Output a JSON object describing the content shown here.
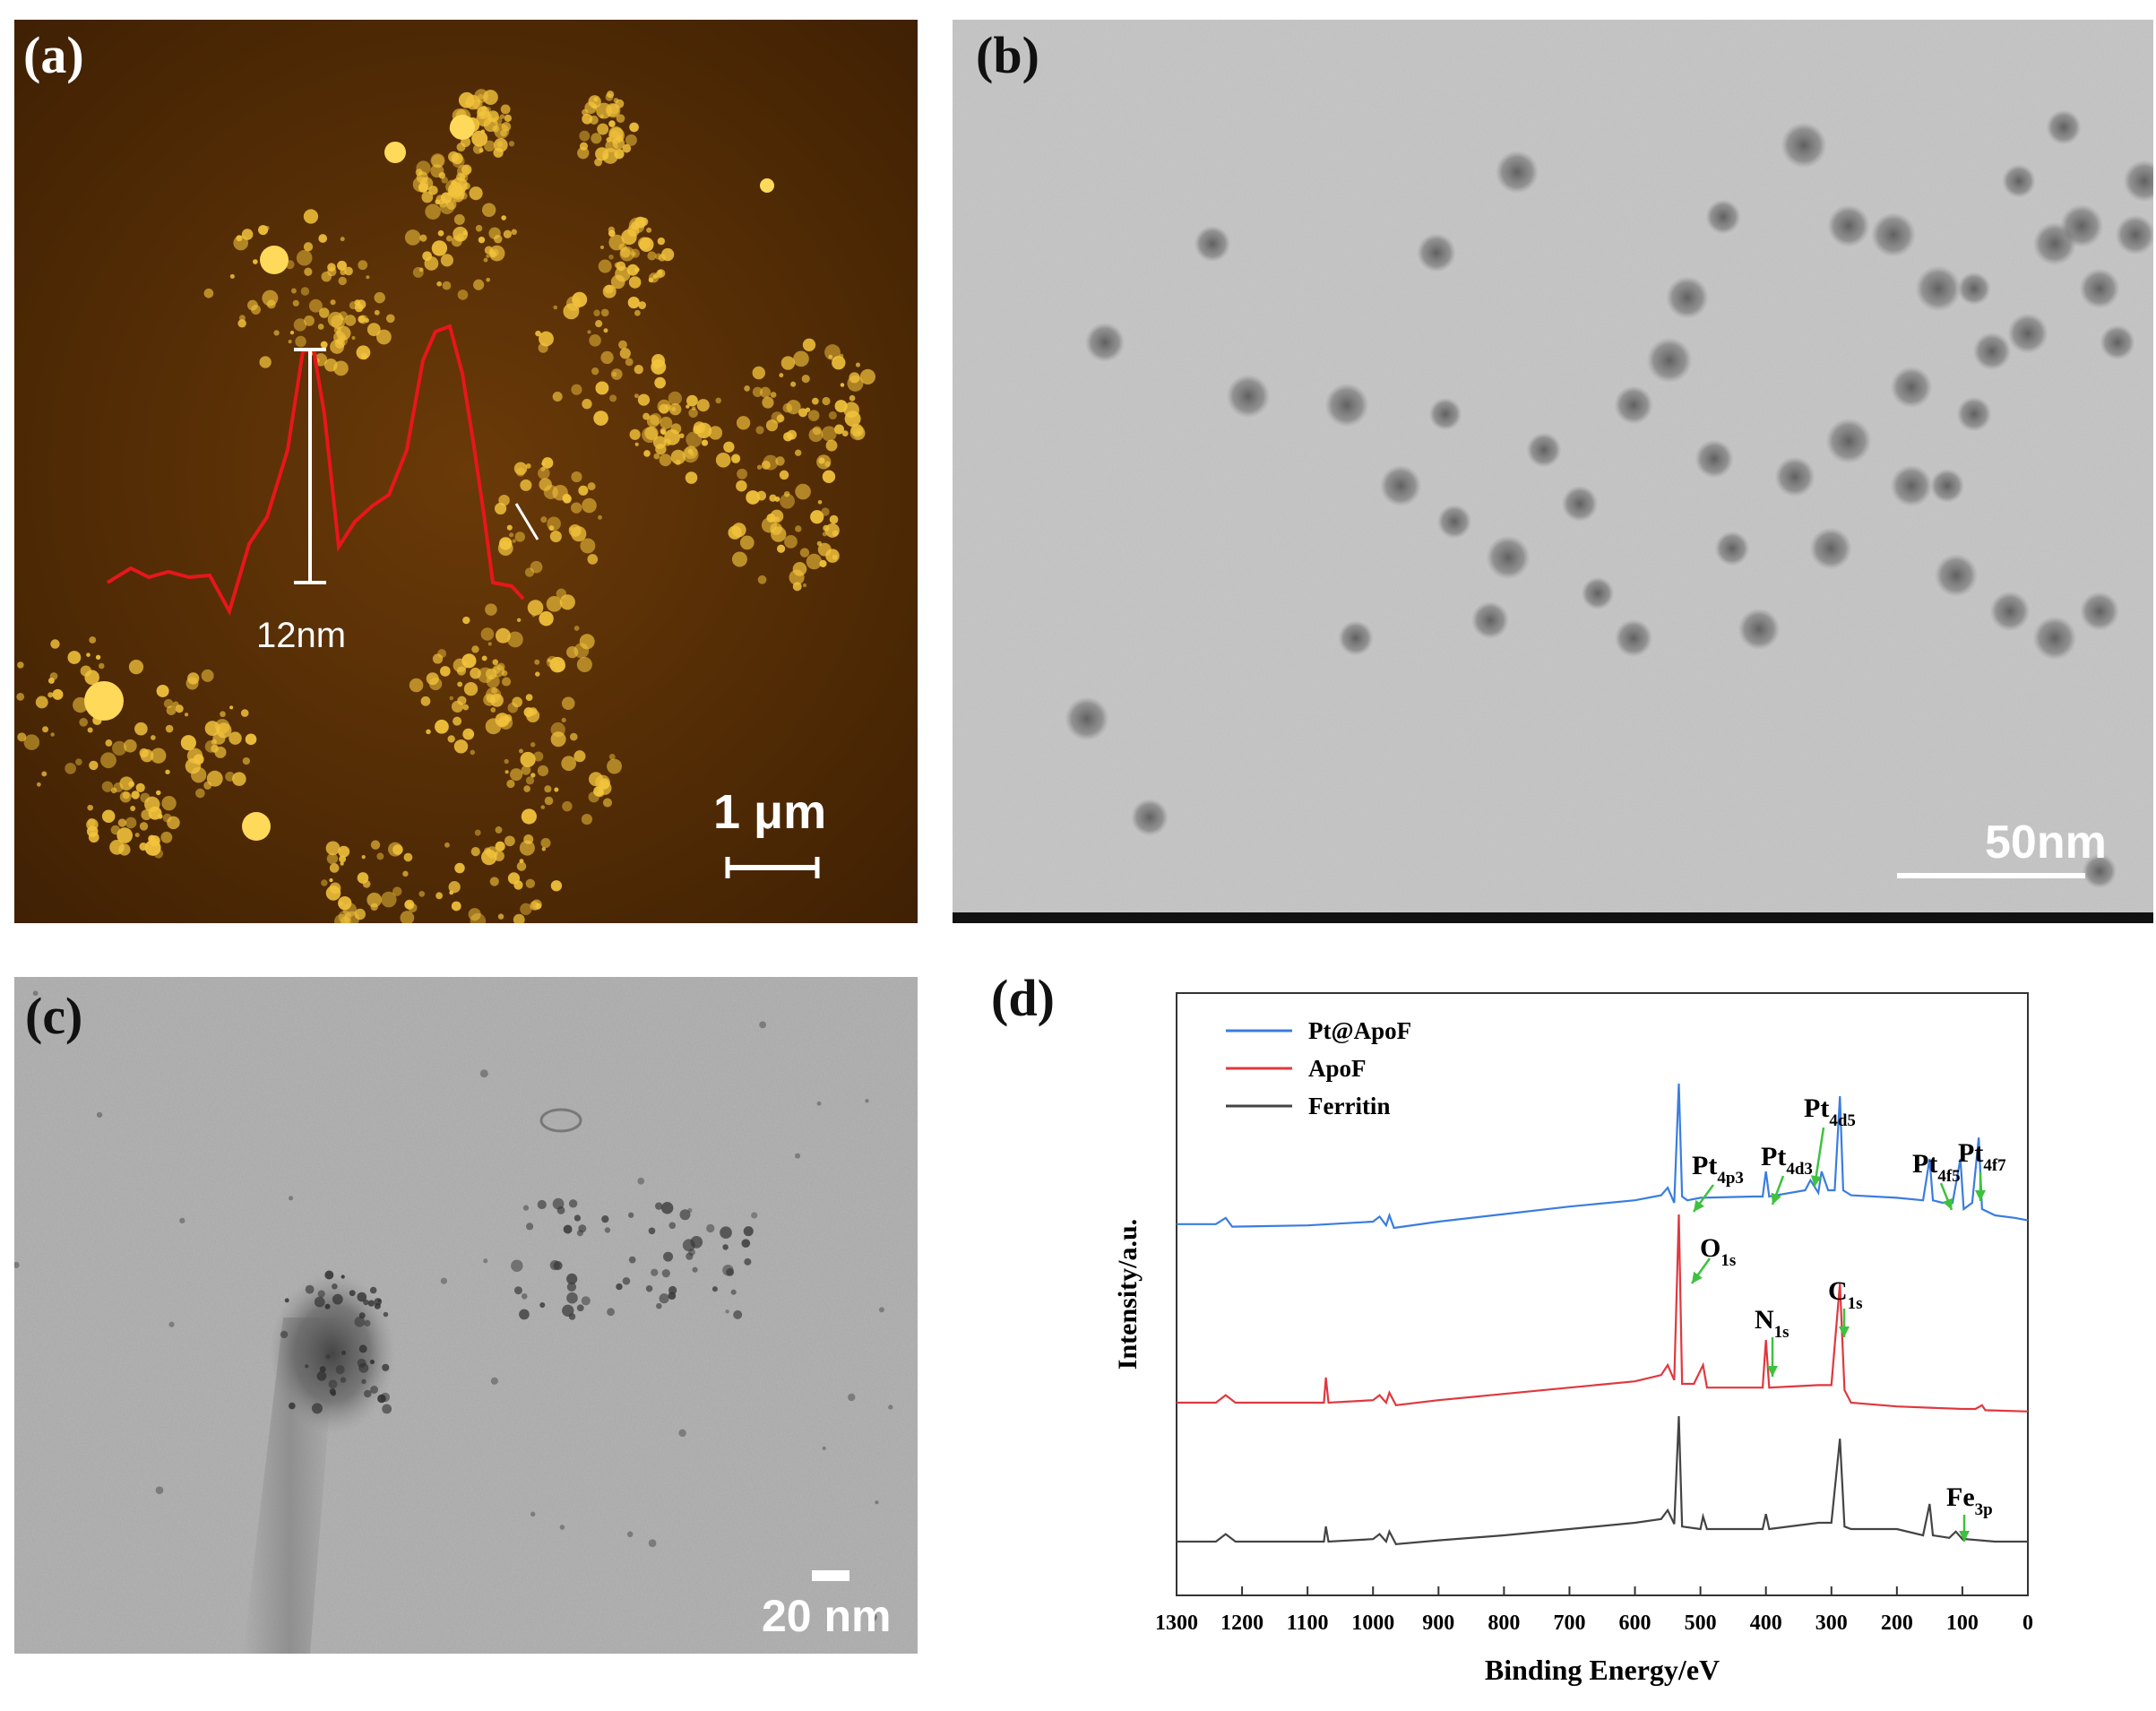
{
  "panel_a": {
    "label": "(a)",
    "height_label": "12nm",
    "scale_label": "1 μm",
    "colors": {
      "bg": "#5a2f06",
      "particle": "#f2c33c",
      "profile": "#e8161b"
    }
  },
  "panel_b": {
    "label": "(b)",
    "scale_label": "50nm",
    "colors": {
      "bg": "#c8c8c8",
      "particle": "#5e5e5e"
    }
  },
  "panel_c": {
    "label": "(c)",
    "scale_label": "20 nm",
    "colors": {
      "bg": "#a7a7a7",
      "particle": "#3a3a3a"
    }
  },
  "panel_d": {
    "label": "(d)",
    "chart_data": {
      "type": "line",
      "xlabel": "Binding Energy/eV",
      "ylabel": "Intensity/a.u.",
      "xlim": [
        1300,
        0
      ],
      "x_ticks": [
        1300,
        1200,
        1100,
        1000,
        900,
        800,
        700,
        600,
        500,
        400,
        300,
        200,
        100,
        0
      ],
      "legend_position": "top-left",
      "series": [
        {
          "name": "Pt@ApoF",
          "color": "#3a7de0",
          "offset": 2.0,
          "points": [
            [
              1300,
              0.03
            ],
            [
              1240,
              0.03
            ],
            [
              1225,
              0.08
            ],
            [
              1215,
              0.01
            ],
            [
              1100,
              0.02
            ],
            [
              1000,
              0.05
            ],
            [
              990,
              0.09
            ],
            [
              980,
              0.02
            ],
            [
              975,
              0.1
            ],
            [
              968,
              0.0
            ],
            [
              900,
              0.05
            ],
            [
              800,
              0.11
            ],
            [
              700,
              0.17
            ],
            [
              600,
              0.22
            ],
            [
              560,
              0.26
            ],
            [
              550,
              0.32
            ],
            [
              540,
              0.2
            ],
            [
              533,
              1.15
            ],
            [
              528,
              0.25
            ],
            [
              520,
              0.22
            ],
            [
              500,
              0.24
            ],
            [
              420,
              0.25
            ],
            [
              405,
              0.25
            ],
            [
              400,
              0.45
            ],
            [
              395,
              0.25
            ],
            [
              340,
              0.3
            ],
            [
              332,
              0.38
            ],
            [
              320,
              0.28
            ],
            [
              315,
              0.45
            ],
            [
              305,
              0.3
            ],
            [
              295,
              0.3
            ],
            [
              287,
              1.05
            ],
            [
              282,
              0.3
            ],
            [
              270,
              0.26
            ],
            [
              200,
              0.24
            ],
            [
              160,
              0.22
            ],
            [
              150,
              0.55
            ],
            [
              145,
              0.22
            ],
            [
              130,
              0.2
            ],
            [
              115,
              0.2
            ],
            [
              103,
              0.55
            ],
            [
              98,
              0.15
            ],
            [
              85,
              0.2
            ],
            [
              75,
              0.72
            ],
            [
              70,
              0.15
            ],
            [
              50,
              0.1
            ],
            [
              20,
              0.08
            ],
            [
              0,
              0.06
            ]
          ]
        },
        {
          "name": "ApoF",
          "color": "#e0383e",
          "offset": 1.0,
          "points": [
            [
              1300,
              0.0
            ],
            [
              1240,
              0.0
            ],
            [
              1225,
              0.06
            ],
            [
              1210,
              0.0
            ],
            [
              1100,
              0.0
            ],
            [
              1075,
              0.0
            ],
            [
              1072,
              0.2
            ],
            [
              1068,
              0.0
            ],
            [
              1000,
              0.02
            ],
            [
              990,
              0.06
            ],
            [
              980,
              0.0
            ],
            [
              975,
              0.08
            ],
            [
              965,
              -0.02
            ],
            [
              900,
              0.02
            ],
            [
              800,
              0.07
            ],
            [
              700,
              0.12
            ],
            [
              600,
              0.17
            ],
            [
              560,
              0.22
            ],
            [
              550,
              0.3
            ],
            [
              540,
              0.18
            ],
            [
              533,
              1.5
            ],
            [
              528,
              0.15
            ],
            [
              510,
              0.15
            ],
            [
              496,
              0.3
            ],
            [
              490,
              0.12
            ],
            [
              420,
              0.12
            ],
            [
              405,
              0.12
            ],
            [
              400,
              0.5
            ],
            [
              395,
              0.12
            ],
            [
              320,
              0.14
            ],
            [
              300,
              0.14
            ],
            [
              287,
              0.95
            ],
            [
              280,
              0.1
            ],
            [
              270,
              0.0
            ],
            [
              200,
              -0.03
            ],
            [
              100,
              -0.05
            ],
            [
              80,
              -0.05
            ],
            [
              70,
              -0.02
            ],
            [
              65,
              -0.06
            ],
            [
              0,
              -0.07
            ]
          ]
        },
        {
          "name": "Ferritin",
          "color": "#444444",
          "offset": 0.0,
          "points": [
            [
              1300,
              0.0
            ],
            [
              1240,
              0.0
            ],
            [
              1225,
              0.06
            ],
            [
              1210,
              0.0
            ],
            [
              1100,
              0.0
            ],
            [
              1075,
              0.0
            ],
            [
              1072,
              0.12
            ],
            [
              1068,
              0.0
            ],
            [
              1000,
              0.02
            ],
            [
              990,
              0.06
            ],
            [
              980,
              0.0
            ],
            [
              975,
              0.08
            ],
            [
              965,
              -0.02
            ],
            [
              900,
              0.01
            ],
            [
              800,
              0.05
            ],
            [
              700,
              0.1
            ],
            [
              600,
              0.15
            ],
            [
              560,
              0.18
            ],
            [
              550,
              0.25
            ],
            [
              540,
              0.14
            ],
            [
              533,
              1.0
            ],
            [
              528,
              0.12
            ],
            [
              500,
              0.1
            ],
            [
              496,
              0.2
            ],
            [
              490,
              0.1
            ],
            [
              420,
              0.1
            ],
            [
              405,
              0.1
            ],
            [
              400,
              0.22
            ],
            [
              395,
              0.1
            ],
            [
              320,
              0.15
            ],
            [
              300,
              0.15
            ],
            [
              287,
              0.82
            ],
            [
              280,
              0.12
            ],
            [
              270,
              0.1
            ],
            [
              200,
              0.1
            ],
            [
              160,
              0.05
            ],
            [
              150,
              0.3
            ],
            [
              145,
              0.05
            ],
            [
              120,
              0.03
            ],
            [
              110,
              0.08
            ],
            [
              100,
              0.02
            ],
            [
              98,
              0.08
            ],
            [
              95,
              0.02
            ],
            [
              50,
              0.0
            ],
            [
              0,
              0.0
            ]
          ]
        }
      ],
      "annotations": [
        {
          "base": "Pt",
          "sub": "4p3"
        },
        {
          "base": "Pt",
          "sub": "4d3"
        },
        {
          "base": "Pt",
          "sub": "4d5"
        },
        {
          "base": "Pt",
          "sub": "4f5"
        },
        {
          "base": "Pt",
          "sub": "4f7"
        },
        {
          "base": "O",
          "sub": "1s"
        },
        {
          "base": "N",
          "sub": "1s"
        },
        {
          "base": "C",
          "sub": "1s"
        },
        {
          "base": "Fe",
          "sub": "3p"
        }
      ]
    }
  }
}
